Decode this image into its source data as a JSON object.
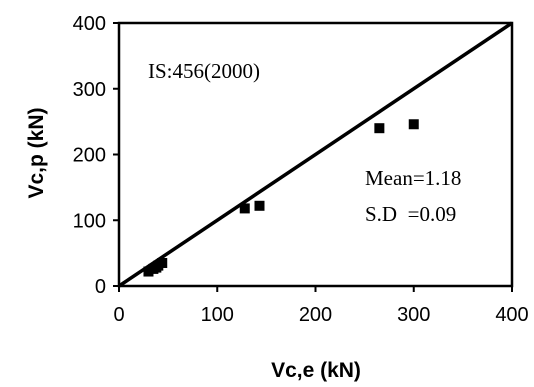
{
  "chart_data": {
    "type": "scatter",
    "xlabel": "Vc,e (kN)",
    "ylabel": "Vc,p (kN)",
    "xlim": [
      0,
      400
    ],
    "ylim": [
      0,
      400
    ],
    "xticks": [
      "0",
      "100",
      "200",
      "300",
      "400"
    ],
    "yticks": [
      "0",
      "100",
      "200",
      "300",
      "400"
    ],
    "grid": false,
    "annotations": {
      "code": "IS:456(2000)",
      "mean": "Mean=1.18",
      "sd": "S.D  =0.09"
    },
    "reference_line": {
      "x": [
        0,
        400
      ],
      "y": [
        0,
        400
      ]
    },
    "series": [
      {
        "marker": "square",
        "color": "#000000",
        "x": [
          30,
          35,
          38,
          40,
          44,
          128,
          143,
          265,
          300
        ],
        "y": [
          22,
          26,
          28,
          31,
          35,
          118,
          122,
          240,
          246
        ]
      }
    ]
  }
}
